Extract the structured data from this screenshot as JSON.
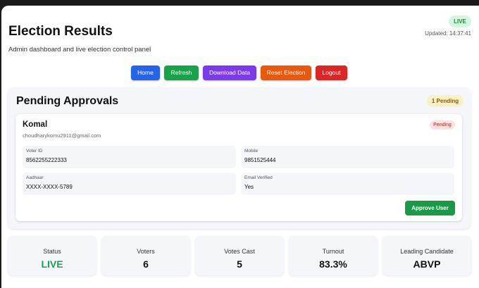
{
  "header": {
    "title": "Election Results",
    "subtitle": "Admin dashboard and live election control panel",
    "status_badge": "LIVE",
    "updated": "Updated: 14:37:41"
  },
  "nav": [
    "Home",
    "Refresh",
    "Download Data",
    "Reset Election",
    "Logout"
  ],
  "pending": {
    "title": "Pending Approvals",
    "badge": "1 Pending",
    "card": {
      "name": "Komal",
      "email": "choudharykomu2911@gmail.com",
      "status": "Pending",
      "fields": [
        {
          "label": "Voter ID",
          "value": "8562255222333"
        },
        {
          "label": "Mobile",
          "value": "9851525444"
        },
        {
          "label": "Aadhaar",
          "value": "XXXX-XXXX-5789"
        },
        {
          "label": "Email Verified",
          "value": "Yes"
        }
      ],
      "action": "Approve User"
    }
  },
  "stats": [
    {
      "label": "Status",
      "value": "LIVE"
    },
    {
      "label": "Voters",
      "value": "6"
    },
    {
      "label": "Votes Cast",
      "value": "5"
    },
    {
      "label": "Turnout",
      "value": "83.3%"
    },
    {
      "label": "Leading Candidate",
      "value": "ABVP"
    }
  ]
}
